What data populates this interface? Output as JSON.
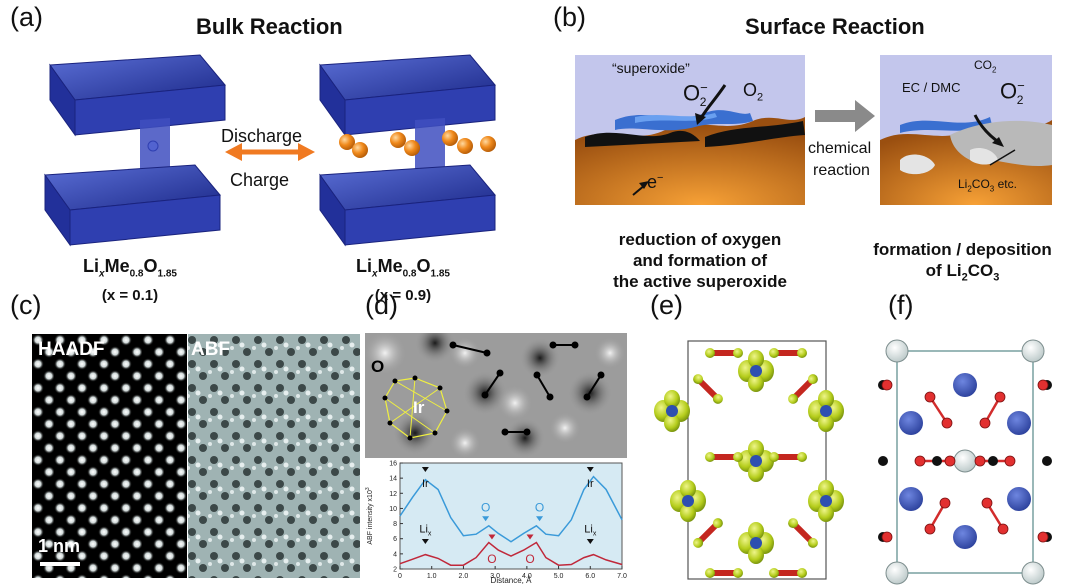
{
  "panels": {
    "a": {
      "label": "(a)",
      "title": "Bulk Reaction",
      "arrow_top": "Discharge",
      "arrow_bottom": "Charge",
      "left_formula_x": "(x = 0.1)",
      "right_formula_x": "(x = 0.9)"
    },
    "b": {
      "label": "(b)",
      "title": "Surface Reaction",
      "superoxide": "“superoxide”",
      "o2_minus": "O",
      "o2_minus_sup": "−",
      "o2_minus_sub": "2",
      "o2": "O",
      "o2_sub": "2",
      "electron": "e",
      "electron_sup": "−",
      "arrow_line1": "chemical",
      "arrow_line2": "reaction",
      "co2": "CO",
      "co2_sub": "2",
      "ec_dmc": "EC / DMC",
      "li2co3_text": "etc.",
      "caption_left_l1": "reduction of oxygen",
      "caption_left_l2": "and formation of",
      "caption_left_l3": "the active superoxide",
      "caption_right_l1": "formation / deposition",
      "caption_right_l2_prefix": "of Li",
      "caption_right_l2_sub": "2",
      "caption_right_l2_suffix": "CO",
      "caption_right_l2_sub2": "3"
    },
    "c": {
      "label": "(c)",
      "haadf": "HAADF",
      "abf": "ABF",
      "scale": "1 nm"
    },
    "d": {
      "label": "(d)",
      "atom_o": "O",
      "atom_ir": "Ir",
      "ylabel": "ABF intensity x10",
      "ylabel_sup": "3",
      "xlabel": "Distance, Å",
      "labels": {
        "ir": "Ir",
        "o": "O",
        "li": "Li",
        "li_sub": "x"
      }
    },
    "e": {
      "label": "(e)"
    },
    "f": {
      "label": "(f)"
    }
  },
  "chart_data": {
    "type": "line",
    "xlabel": "Distance, Å",
    "ylabel": "ABF intensity x10^3",
    "xlim": [
      0,
      7
    ],
    "ylim": [
      2,
      16
    ],
    "xticks": [
      "0",
      "1.0",
      "2.0",
      "3.0",
      "4.0",
      "5.0",
      "6.0",
      "7.0"
    ],
    "yticks": [
      "2",
      "4",
      "6",
      "8",
      "10",
      "12",
      "14",
      "16"
    ],
    "series": [
      {
        "name": "",
        "color": "#3a9ad9",
        "x": [
          0.0,
          0.4,
          0.8,
          1.2,
          1.6,
          2.0,
          2.4,
          2.8,
          3.1,
          3.5,
          3.9,
          4.3,
          4.6,
          5.0,
          5.4,
          5.8,
          6.1,
          6.5,
          7.0
        ],
        "y": [
          9.0,
          11.5,
          13.8,
          12.5,
          8.8,
          6.4,
          6.6,
          7.7,
          6.7,
          5.6,
          6.7,
          7.7,
          6.6,
          6.4,
          8.5,
          12.5,
          14.2,
          12.5,
          8.5
        ]
      },
      {
        "name": "",
        "color": "#c0283a",
        "x": [
          0.0,
          0.4,
          0.8,
          1.2,
          1.6,
          2.0,
          2.4,
          2.8,
          3.1,
          3.5,
          3.9,
          4.3,
          4.6,
          5.0,
          5.4,
          5.8,
          6.1,
          6.5,
          7.0
        ],
        "y": [
          2.7,
          3.3,
          3.9,
          3.4,
          2.5,
          2.5,
          3.5,
          5.5,
          4.5,
          3.7,
          4.5,
          5.5,
          3.5,
          2.5,
          2.6,
          3.5,
          3.9,
          3.2,
          2.6
        ]
      }
    ],
    "markers": {
      "ir": [
        0.8,
        6.0
      ],
      "o_blue": [
        2.7,
        4.4
      ],
      "o_red": [
        2.9,
        4.1
      ],
      "li": [
        0.8,
        6.0
      ]
    },
    "colors": {
      "bg": "#d6eaf3",
      "blue": "#3a9ad9",
      "red": "#c0283a"
    }
  }
}
